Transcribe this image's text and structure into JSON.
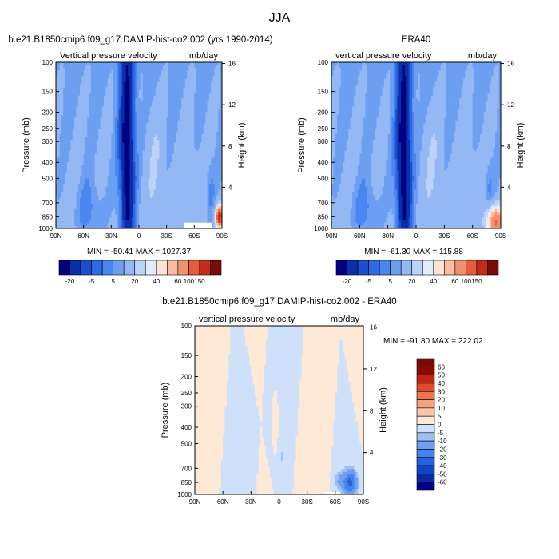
{
  "figure": {
    "title": "JJA",
    "levels_top": [
      -20,
      -10,
      -5,
      0,
      5,
      10,
      20,
      30,
      40,
      50,
      60,
      80,
      100,
      150
    ],
    "levels_diff": [
      -60,
      -50,
      -40,
      -30,
      -20,
      -10,
      -5,
      0,
      5,
      10,
      20,
      30,
      40,
      50,
      60
    ],
    "colors_top": [
      "#000080",
      "#0a2fa8",
      "#1c4fcf",
      "#2e6ae6",
      "#4a86f0",
      "#6c9ff2",
      "#93b8f4",
      "#bcd3f8",
      "#e2ecfb",
      "#fde3d2",
      "#f8bca2",
      "#f2916e",
      "#e45d3c",
      "#c42d1a",
      "#7a0b06"
    ],
    "colors_diff": [
      "#000080",
      "#082ca0",
      "#1244c4",
      "#2562e0",
      "#4682ee",
      "#6e9ff2",
      "#9ebff6",
      "#cfe0fb",
      "#fde9d6",
      "#f9c6a8",
      "#f5a27c",
      "#ee7652",
      "#de4a2c",
      "#c02416",
      "#8a0b06",
      "#7a0a05"
    ]
  },
  "chart_data": [
    {
      "type": "heatmap",
      "name": "model",
      "title": "b.e21.B1850cmip6.f09_g17.DAMIP-hist-co2.002 (yrs 1990-2014)",
      "subtitle_left": "Vertical pressure velocity",
      "subtitle_right": "mb/day",
      "ylabel": "Pressure (mb)",
      "ylabel_right": "Height (km)",
      "xticks": [
        "90N",
        "60N",
        "30N",
        "0",
        "30S",
        "60S",
        "90S"
      ],
      "yticks": [
        "100",
        "150",
        "200",
        "250",
        "300",
        "400",
        "500",
        "700",
        "850",
        "1000"
      ],
      "yticks_right": [
        "16",
        "12",
        "8",
        "4"
      ],
      "xlim": [
        90,
        -90
      ],
      "ylim": [
        1000,
        100
      ],
      "stats": "MIN = -50.41  MAX = 1027.37",
      "colorbar_labels": [
        "-20",
        "-5",
        "5",
        "20",
        "40",
        "60",
        "100",
        "150"
      ]
    },
    {
      "type": "heatmap",
      "name": "obs",
      "title": "ERA40",
      "subtitle_left": "vertical pressure velocity",
      "subtitle_right": "mb/day",
      "ylabel": "Pressure (mb)",
      "ylabel_right": "Height (km)",
      "xticks": [
        "90N",
        "60N",
        "30N",
        "0",
        "30S",
        "60S",
        "90S"
      ],
      "yticks": [
        "100",
        "150",
        "200",
        "250",
        "300",
        "400",
        "500",
        "700",
        "850",
        "1000"
      ],
      "yticks_right": [
        "16",
        "12",
        "8",
        "4"
      ],
      "xlim": [
        90,
        -90
      ],
      "ylim": [
        1000,
        100
      ],
      "stats": "MIN = -61.30  MAX = 115.88",
      "colorbar_labels": [
        "-20",
        "-5",
        "5",
        "20",
        "40",
        "60",
        "100",
        "150"
      ]
    },
    {
      "type": "heatmap",
      "name": "diff",
      "title": "b.e21.B1850cmip6.f09_g17.DAMIP-hist-co2.002 - ERA40",
      "subtitle_left": "vertical pressure velocity",
      "subtitle_right": "mb/day",
      "ylabel": "Pressure (mb)",
      "ylabel_right": "Height (km)",
      "xticks": [
        "90N",
        "60N",
        "30N",
        "0",
        "30S",
        "60S",
        "90S"
      ],
      "yticks": [
        "100",
        "150",
        "200",
        "250",
        "300",
        "400",
        "500",
        "700",
        "850",
        "1000"
      ],
      "yticks_right": [
        "16",
        "12",
        "8",
        "4"
      ],
      "xlim": [
        90,
        -90
      ],
      "ylim": [
        1000,
        100
      ],
      "stats": "MIN = -91.80  MAX = 222.02",
      "colorbar_labels": [
        "60",
        "50",
        "40",
        "30",
        "20",
        "10",
        "5",
        "0",
        "-5",
        "-10",
        "-20",
        "-30",
        "-40",
        "-50",
        "-60"
      ]
    }
  ]
}
